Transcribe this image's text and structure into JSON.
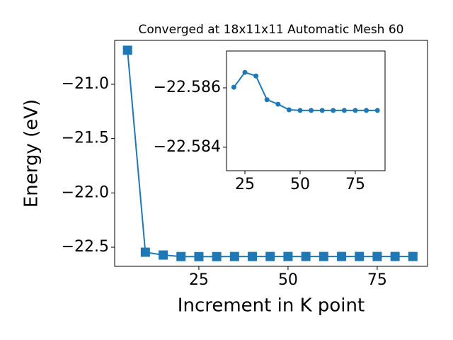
{
  "chart_data": [
    {
      "type": "line",
      "title": "Converged at 18x11x11 Automatic Mesh 60",
      "x_label": "Increment in K point",
      "y_label": "Energy (eV)",
      "x": [
        5,
        10,
        15,
        20,
        25,
        30,
        35,
        40,
        45,
        50,
        55,
        60,
        65,
        70,
        75,
        80,
        85
      ],
      "series": [
        {
          "color": "#1f77b4",
          "marker": "square",
          "values": [
            -20.687,
            -22.546,
            -22.572,
            -22.58602,
            -22.58652,
            -22.5864,
            -22.5856,
            -22.58545,
            -22.58526,
            -22.58524,
            -22.58524,
            -22.58524,
            -22.58524,
            -22.58524,
            -22.58524,
            -22.58524,
            -22.58524
          ]
        }
      ],
      "xlim": [
        1.4,
        89.1
      ],
      "ylim": [
        -22.676,
        -20.596
      ],
      "xticks": [
        25,
        50,
        75
      ],
      "yticks": [
        {
          "value": -22.5,
          "label": "−22.5"
        },
        {
          "value": -22.0,
          "label": "−22.0"
        },
        {
          "value": -21.5,
          "label": "−21.5"
        },
        {
          "value": -21.0,
          "label": "−21.0"
        }
      ]
    },
    {
      "type": "line",
      "x": [
        20,
        25,
        30,
        35,
        40,
        45,
        50,
        55,
        60,
        65,
        70,
        75,
        80,
        85
      ],
      "series": [
        {
          "color": "#1f77b4",
          "marker": "circle",
          "values": [
            -22.58602,
            -22.58652,
            -22.5864,
            -22.5856,
            -22.58545,
            -22.58526,
            -22.58524,
            -22.58524,
            -22.58524,
            -22.58524,
            -22.58524,
            -22.58524,
            -22.58524,
            -22.58524
          ]
        }
      ],
      "xlim": [
        16.67,
        88.46
      ],
      "ylim": [
        -22.58321,
        -22.58724
      ],
      "xticks": [
        25,
        50,
        75
      ],
      "yticks": [
        {
          "value": -22.586,
          "label": "−22.586"
        },
        {
          "value": -22.584,
          "label": "−22.584"
        }
      ]
    }
  ]
}
